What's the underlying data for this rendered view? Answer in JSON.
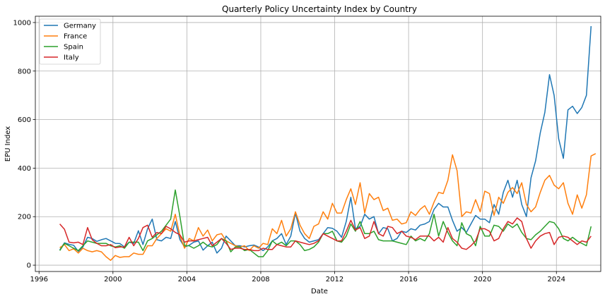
{
  "chart_data": {
    "type": "line",
    "title": "Quarterly Policy Uncertainty Index by Country",
    "xlabel": "Date",
    "ylabel": "EPU Index",
    "xlim": [
      1995.8,
      2026.4
    ],
    "ylim": [
      -26,
      1026
    ],
    "x_ticks": [
      1996,
      2000,
      2004,
      2008,
      2012,
      2016,
      2020,
      2024
    ],
    "y_ticks": [
      0,
      200,
      400,
      600,
      800,
      1000
    ],
    "grid": true,
    "legend_position": "top-left",
    "x_start": 1997.125,
    "x_step": 0.25,
    "series": [
      {
        "name": "Germany",
        "color": "#1f77b4",
        "values": [
          63,
          92,
          86,
          82,
          57,
          75,
          115,
          110,
          98,
          105,
          110,
          100,
          90,
          89,
          75,
          95,
          90,
          142,
          85,
          150,
          190,
          105,
          100,
          115,
          110,
          180,
          105,
          75,
          82,
          95,
          100,
          62,
          80,
          95,
          50,
          70,
          120,
          100,
          80,
          80,
          75,
          80,
          83,
          75,
          60,
          75,
          100,
          110,
          130,
          85,
          120,
          215,
          140,
          110,
          95,
          100,
          105,
          130,
          155,
          152,
          140,
          115,
          180,
          280,
          150,
          160,
          210,
          190,
          200,
          130,
          155,
          150,
          100,
          110,
          140,
          135,
          150,
          145,
          165,
          170,
          180,
          230,
          255,
          240,
          240,
          185,
          140,
          155,
          135,
          170,
          205,
          190,
          190,
          175,
          250,
          210,
          300,
          350,
          280,
          350,
          250,
          200,
          360,
          430,
          545,
          630,
          785,
          700,
          520,
          440,
          640,
          655,
          625,
          650,
          700,
          985
        ]
      },
      {
        "name": "France",
        "color": "#ff7f0e",
        "values": [
          72,
          85,
          60,
          68,
          50,
          70,
          60,
          55,
          60,
          55,
          35,
          20,
          40,
          32,
          35,
          35,
          50,
          45,
          45,
          80,
          80,
          110,
          130,
          150,
          140,
          210,
          120,
          70,
          110,
          100,
          155,
          120,
          145,
          100,
          125,
          130,
          100,
          90,
          80,
          75,
          80,
          60,
          80,
          70,
          90,
          85,
          150,
          130,
          185,
          120,
          150,
          220,
          165,
          130,
          110,
          160,
          170,
          220,
          190,
          255,
          215,
          215,
          270,
          315,
          250,
          340,
          215,
          295,
          270,
          280,
          225,
          235,
          185,
          190,
          170,
          175,
          220,
          205,
          230,
          245,
          210,
          260,
          300,
          295,
          350,
          455,
          390,
          200,
          220,
          215,
          270,
          220,
          305,
          295,
          205,
          280,
          255,
          300,
          320,
          295,
          340,
          250,
          220,
          240,
          300,
          350,
          370,
          330,
          315,
          340,
          255,
          210,
          290,
          235,
          290,
          450,
          460
        ]
      },
      {
        "name": "Spain",
        "color": "#2ca02c",
        "values": [
          60,
          90,
          80,
          70,
          60,
          80,
          100,
          95,
          90,
          90,
          90,
          80,
          75,
          80,
          70,
          95,
          95,
          95,
          60,
          100,
          110,
          125,
          140,
          165,
          190,
          310,
          200,
          80,
          80,
          70,
          80,
          95,
          80,
          75,
          85,
          110,
          100,
          55,
          75,
          75,
          60,
          65,
          50,
          35,
          35,
          60,
          100,
          85,
          95,
          80,
          100,
          100,
          85,
          60,
          65,
          75,
          95,
          130,
          130,
          140,
          100,
          95,
          120,
          170,
          140,
          180,
          130,
          130,
          140,
          105,
          100,
          100,
          100,
          95,
          90,
          85,
          120,
          100,
          110,
          100,
          130,
          210,
          120,
          180,
          135,
          100,
          80,
          175,
          130,
          120,
          80,
          160,
          120,
          120,
          165,
          160,
          140,
          170,
          155,
          170,
          135,
          110,
          105,
          125,
          140,
          160,
          180,
          175,
          150,
          110,
          100,
          115,
          100,
          90,
          80,
          160
        ]
      },
      {
        "name": "Italy",
        "color": "#d62728",
        "values": [
          170,
          148,
          95,
          92,
          95,
          85,
          155,
          105,
          90,
          80,
          80,
          85,
          72,
          75,
          75,
          115,
          80,
          110,
          155,
          165,
          115,
          135,
          130,
          160,
          150,
          135,
          125,
          95,
          100,
          100,
          105,
          110,
          115,
          80,
          95,
          110,
          90,
          65,
          70,
          70,
          65,
          65,
          60,
          60,
          70,
          65,
          65,
          85,
          80,
          75,
          75,
          100,
          95,
          90,
          85,
          90,
          100,
          130,
          120,
          110,
          100,
          100,
          140,
          185,
          145,
          155,
          110,
          120,
          180,
          130,
          120,
          160,
          155,
          130,
          140,
          120,
          115,
          105,
          120,
          120,
          120,
          100,
          115,
          95,
          155,
          110,
          95,
          70,
          65,
          80,
          100,
          150,
          150,
          140,
          100,
          110,
          150,
          180,
          170,
          195,
          180,
          110,
          70,
          100,
          120,
          130,
          135,
          85,
          115,
          120,
          115,
          100,
          85,
          100,
          95,
          120
        ]
      }
    ]
  }
}
